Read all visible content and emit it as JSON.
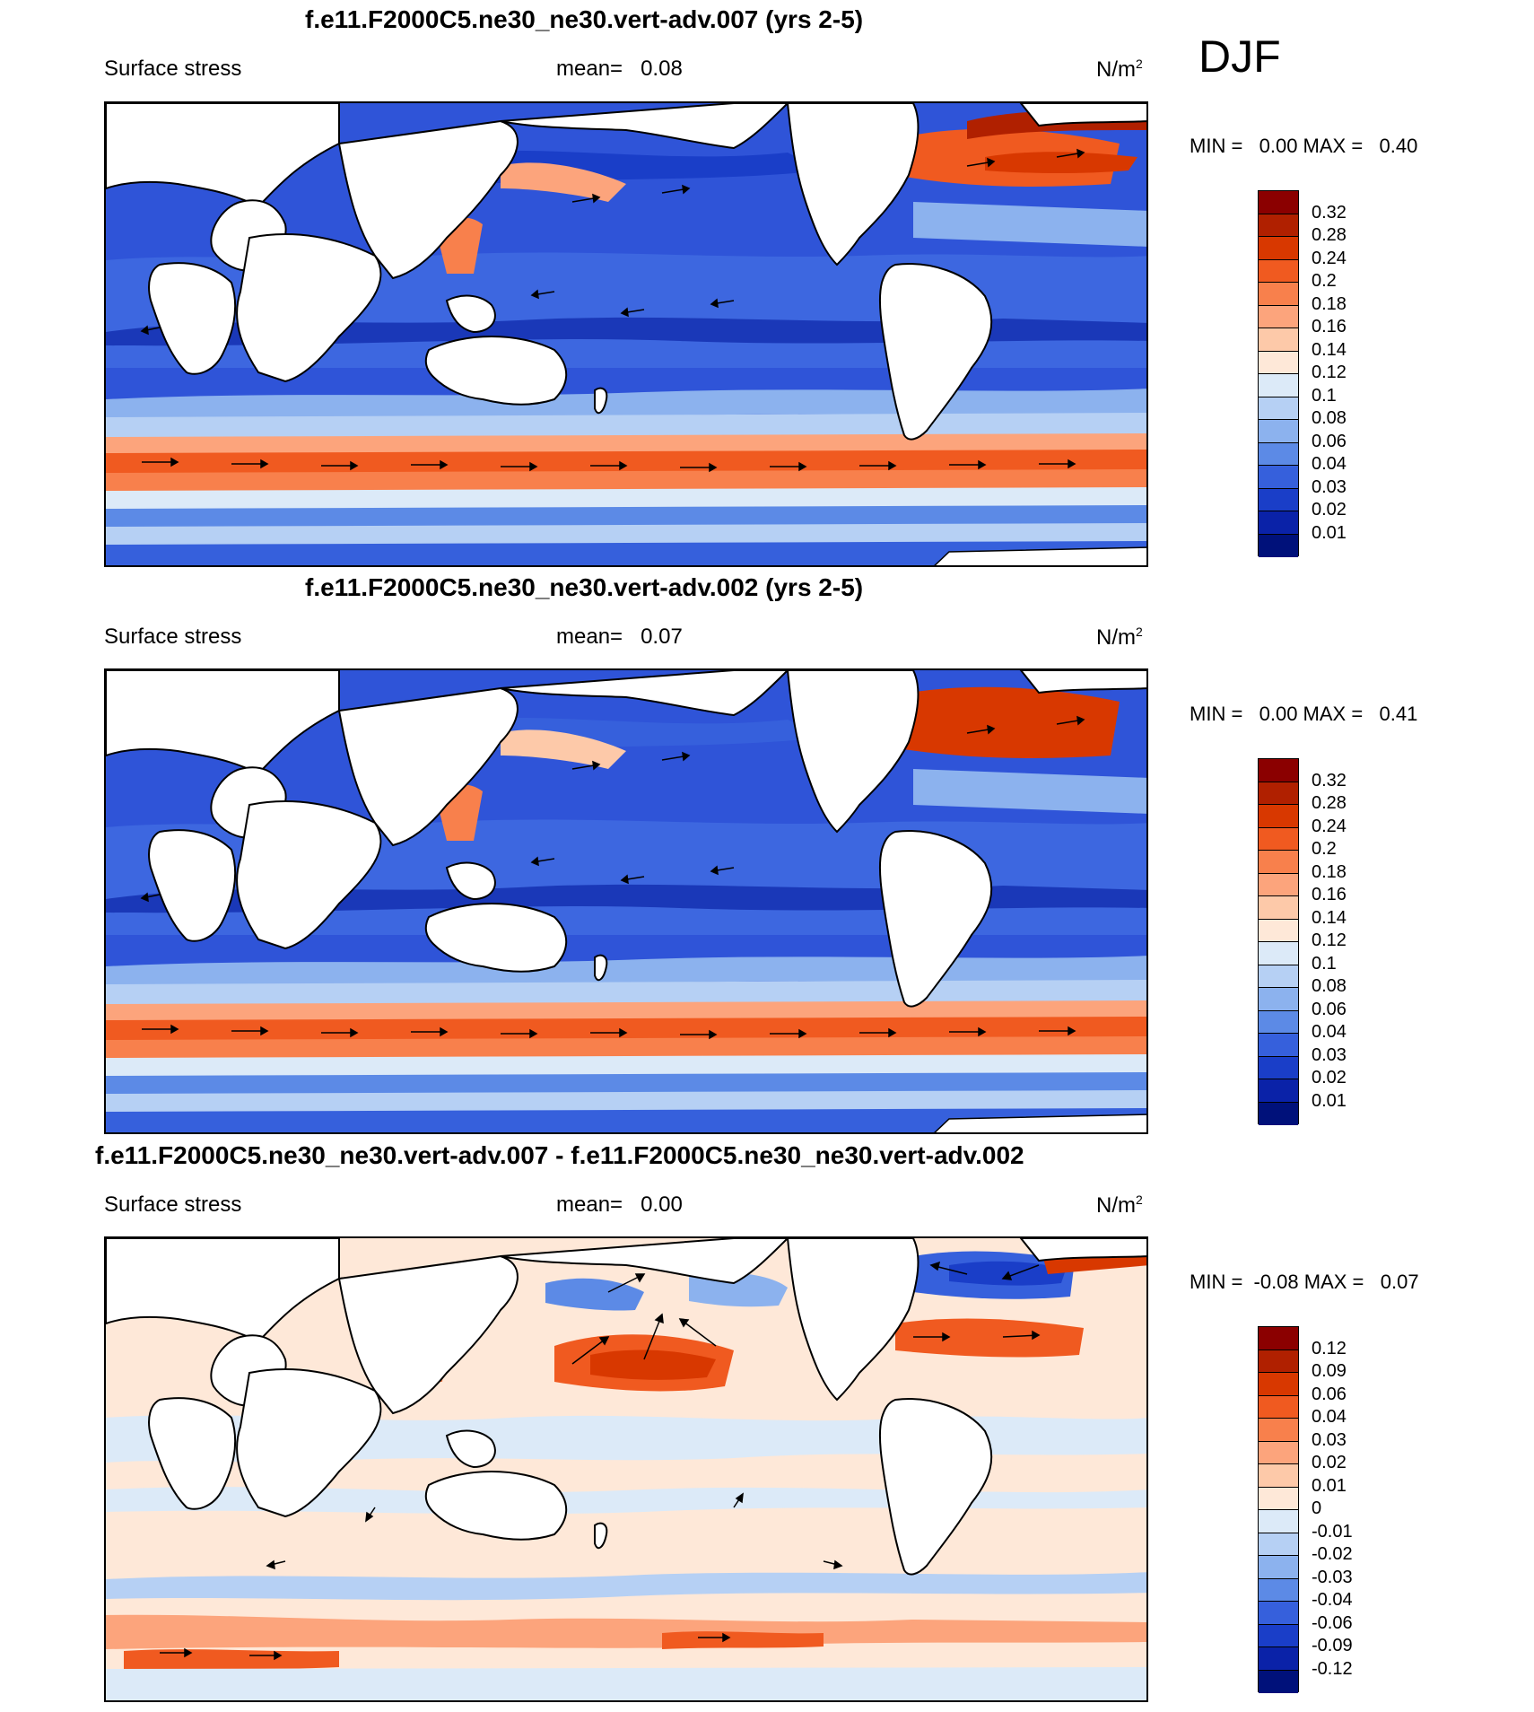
{
  "season": "DJF",
  "panels": [
    {
      "title": "f.e11.F2000C5.ne30_ne30.vert-adv.007 (yrs 2-5)",
      "left_label": "Surface stress",
      "mean_label": "mean=",
      "mean_value": "0.08",
      "units": "N/m",
      "units_sup": "2",
      "minmax": "MIN =   0.00 MAX =   0.40",
      "colorbar": {
        "labels": [
          "0.32",
          "0.28",
          "0.24",
          "0.2",
          "0.18",
          "0.16",
          "0.14",
          "0.12",
          "0.1",
          "0.08",
          "0.06",
          "0.04",
          "0.03",
          "0.02",
          "0.01"
        ],
        "colors": [
          "#8B0000",
          "#B02000",
          "#D83800",
          "#F05A20",
          "#F8804C",
          "#FCA47C",
          "#FDC9A9",
          "#FEE8D8",
          "#DCEAF8",
          "#B6D0F4",
          "#8CB2EE",
          "#5C8AE6",
          "#3660DC",
          "#1A3EC8",
          "#0A22A8",
          "#00117A"
        ]
      }
    },
    {
      "title": "f.e11.F2000C5.ne30_ne30.vert-adv.002 (yrs 2-5)",
      "left_label": "Surface stress",
      "mean_label": "mean=",
      "mean_value": "0.07",
      "units": "N/m",
      "units_sup": "2",
      "minmax": "MIN =   0.00 MAX =   0.41",
      "colorbar": {
        "labels": [
          "0.32",
          "0.28",
          "0.24",
          "0.2",
          "0.18",
          "0.16",
          "0.14",
          "0.12",
          "0.1",
          "0.08",
          "0.06",
          "0.04",
          "0.03",
          "0.02",
          "0.01"
        ],
        "colors": [
          "#8B0000",
          "#B02000",
          "#D83800",
          "#F05A20",
          "#F8804C",
          "#FCA47C",
          "#FDC9A9",
          "#FEE8D8",
          "#DCEAF8",
          "#B6D0F4",
          "#8CB2EE",
          "#5C8AE6",
          "#3660DC",
          "#1A3EC8",
          "#0A22A8",
          "#00117A"
        ]
      }
    },
    {
      "title": "f.e11.F2000C5.ne30_ne30.vert-adv.007 - f.e11.F2000C5.ne30_ne30.vert-adv.002",
      "left_label": "Surface stress",
      "mean_label": "mean=",
      "mean_value": "0.00",
      "units": "N/m",
      "units_sup": "2",
      "minmax": "MIN =  -0.08 MAX =   0.07",
      "colorbar": {
        "labels": [
          "0.12",
          "0.09",
          "0.06",
          "0.04",
          "0.03",
          "0.02",
          "0.01",
          "0",
          "-0.01",
          "-0.02",
          "-0.03",
          "-0.04",
          "-0.06",
          "-0.09",
          "-0.12"
        ],
        "colors": [
          "#8B0000",
          "#B02000",
          "#D83800",
          "#F05A20",
          "#F8804C",
          "#FCA47C",
          "#FDC9A9",
          "#FEE8D8",
          "#DCEAF8",
          "#B6D0F4",
          "#8CB2EE",
          "#5C8AE6",
          "#3660DC",
          "#1A3EC8",
          "#0A22A8",
          "#00117A"
        ]
      }
    }
  ]
}
